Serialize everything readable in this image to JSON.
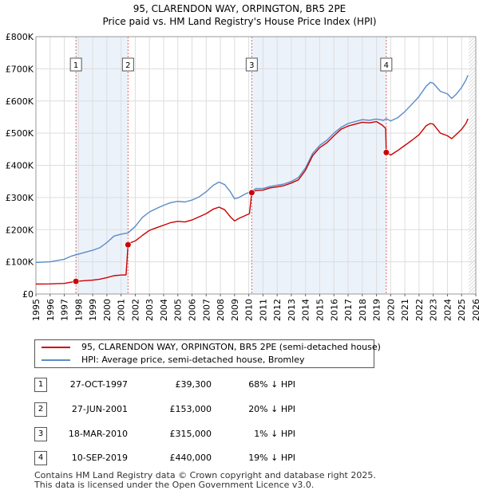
{
  "chart_data": {
    "type": "line",
    "title": "95, CLARENDON WAY, ORPINGTON, BR5 2PE",
    "subtitle": "Price paid vs. HM Land Registry's House Price Index (HPI)",
    "xlim": [
      1995,
      2026
    ],
    "ylim": [
      0,
      800000
    ],
    "y_ticks": [
      {
        "value": 0,
        "label": "£0"
      },
      {
        "value": 100000,
        "label": "£100K"
      },
      {
        "value": 200000,
        "label": "£200K"
      },
      {
        "value": 300000,
        "label": "£300K"
      },
      {
        "value": 400000,
        "label": "£400K"
      },
      {
        "value": 500000,
        "label": "£500K"
      },
      {
        "value": 600000,
        "label": "£600K"
      },
      {
        "value": 700000,
        "label": "£700K"
      },
      {
        "value": 800000,
        "label": "£800K"
      }
    ],
    "x_ticks": [
      "1995",
      "1996",
      "1997",
      "1998",
      "1999",
      "2000",
      "2001",
      "2002",
      "2003",
      "2004",
      "2005",
      "2006",
      "2007",
      "2008",
      "2009",
      "2010",
      "2011",
      "2012",
      "2013",
      "2014",
      "2015",
      "2016",
      "2017",
      "2018",
      "2019",
      "2020",
      "2021",
      "2022",
      "2023",
      "2024",
      "2025",
      "2026"
    ],
    "grid": true,
    "future_shading_from": 2025.5,
    "series": [
      {
        "name": "95, CLARENDON WAY, ORPINGTON, BR5 2PE (semi-detached house)",
        "color": "#cc0000",
        "points": [
          [
            1995.0,
            31000
          ],
          [
            1996.0,
            31500
          ],
          [
            1997.0,
            33000
          ],
          [
            1997.82,
            39300
          ],
          [
            1998.5,
            41500
          ],
          [
            1999.0,
            43000
          ],
          [
            1999.5,
            46000
          ],
          [
            2000.0,
            51000
          ],
          [
            2000.5,
            57000
          ],
          [
            2001.0,
            59000
          ],
          [
            2001.35,
            59500
          ],
          [
            2001.49,
            153000
          ],
          [
            2001.7,
            160000
          ],
          [
            2002.0,
            165000
          ],
          [
            2002.5,
            182000
          ],
          [
            2003.0,
            198000
          ],
          [
            2003.5,
            206000
          ],
          [
            2004.0,
            214000
          ],
          [
            2004.5,
            222000
          ],
          [
            2005.0,
            226000
          ],
          [
            2005.5,
            224000
          ],
          [
            2006.0,
            230000
          ],
          [
            2006.5,
            240000
          ],
          [
            2007.0,
            250000
          ],
          [
            2007.5,
            264000
          ],
          [
            2007.9,
            270000
          ],
          [
            2008.3,
            262000
          ],
          [
            2008.7,
            240000
          ],
          [
            2009.0,
            227000
          ],
          [
            2009.3,
            235000
          ],
          [
            2009.8,
            245000
          ],
          [
            2010.05,
            250000
          ],
          [
            2010.21,
            315000
          ],
          [
            2010.5,
            322000
          ],
          [
            2011.0,
            323000
          ],
          [
            2011.5,
            330000
          ],
          [
            2012.0,
            333000
          ],
          [
            2012.5,
            337000
          ],
          [
            2013.0,
            345000
          ],
          [
            2013.5,
            355000
          ],
          [
            2014.0,
            385000
          ],
          [
            2014.5,
            430000
          ],
          [
            2015.0,
            455000
          ],
          [
            2015.5,
            470000
          ],
          [
            2016.0,
            492000
          ],
          [
            2016.5,
            512000
          ],
          [
            2017.0,
            522000
          ],
          [
            2017.5,
            528000
          ],
          [
            2018.0,
            534000
          ],
          [
            2018.5,
            532000
          ],
          [
            2019.0,
            536000
          ],
          [
            2019.4,
            525000
          ],
          [
            2019.65,
            515000
          ],
          [
            2019.69,
            440000
          ],
          [
            2020.0,
            432000
          ],
          [
            2020.5,
            446000
          ],
          [
            2021.0,
            462000
          ],
          [
            2021.5,
            478000
          ],
          [
            2022.0,
            495000
          ],
          [
            2022.5,
            523000
          ],
          [
            2022.8,
            530000
          ],
          [
            2023.0,
            528000
          ],
          [
            2023.5,
            500000
          ],
          [
            2024.0,
            492000
          ],
          [
            2024.3,
            483000
          ],
          [
            2024.6,
            495000
          ],
          [
            2025.0,
            512000
          ],
          [
            2025.3,
            530000
          ],
          [
            2025.45,
            545000
          ]
        ]
      },
      {
        "name": "HPI: Average price, semi-detached house, Bromley",
        "color": "#5a8cc8",
        "points": [
          [
            1995.0,
            98000
          ],
          [
            1996.0,
            100000
          ],
          [
            1997.0,
            108000
          ],
          [
            1997.5,
            118000
          ],
          [
            1998.0,
            124000
          ],
          [
            1999.0,
            136000
          ],
          [
            1999.5,
            144000
          ],
          [
            2000.0,
            160000
          ],
          [
            2000.5,
            180000
          ],
          [
            2001.0,
            186000
          ],
          [
            2001.49,
            190000
          ],
          [
            2002.0,
            210000
          ],
          [
            2002.5,
            238000
          ],
          [
            2003.0,
            255000
          ],
          [
            2003.5,
            266000
          ],
          [
            2004.0,
            276000
          ],
          [
            2004.5,
            284000
          ],
          [
            2005.0,
            288000
          ],
          [
            2005.5,
            286000
          ],
          [
            2006.0,
            292000
          ],
          [
            2006.5,
            302000
          ],
          [
            2007.0,
            318000
          ],
          [
            2007.5,
            338000
          ],
          [
            2007.9,
            348000
          ],
          [
            2008.3,
            340000
          ],
          [
            2008.7,
            318000
          ],
          [
            2009.0,
            296000
          ],
          [
            2009.3,
            300000
          ],
          [
            2009.8,
            312000
          ],
          [
            2010.21,
            319000
          ],
          [
            2010.5,
            328000
          ],
          [
            2011.0,
            328000
          ],
          [
            2011.5,
            334000
          ],
          [
            2012.0,
            338000
          ],
          [
            2012.5,
            342000
          ],
          [
            2013.0,
            350000
          ],
          [
            2013.5,
            362000
          ],
          [
            2014.0,
            392000
          ],
          [
            2014.5,
            437000
          ],
          [
            2015.0,
            462000
          ],
          [
            2015.5,
            478000
          ],
          [
            2016.0,
            500000
          ],
          [
            2016.5,
            518000
          ],
          [
            2017.0,
            530000
          ],
          [
            2017.5,
            536000
          ],
          [
            2018.0,
            542000
          ],
          [
            2018.5,
            540000
          ],
          [
            2019.0,
            544000
          ],
          [
            2019.5,
            540000
          ],
          [
            2019.69,
            545000
          ],
          [
            2020.0,
            538000
          ],
          [
            2020.5,
            548000
          ],
          [
            2021.0,
            567000
          ],
          [
            2021.5,
            590000
          ],
          [
            2022.0,
            614000
          ],
          [
            2022.5,
            646000
          ],
          [
            2022.8,
            658000
          ],
          [
            2023.0,
            655000
          ],
          [
            2023.5,
            630000
          ],
          [
            2024.0,
            622000
          ],
          [
            2024.3,
            608000
          ],
          [
            2024.6,
            620000
          ],
          [
            2025.0,
            642000
          ],
          [
            2025.3,
            665000
          ],
          [
            2025.45,
            680000
          ]
        ]
      }
    ],
    "sales": [
      {
        "num": "1",
        "year": 1997.82,
        "price": 39300,
        "date": "27-OCT-1997",
        "price_label": "£39,300",
        "hpi": "68% ↓ HPI"
      },
      {
        "num": "2",
        "year": 2001.49,
        "price": 153000,
        "date": "27-JUN-2001",
        "price_label": "£153,000",
        "hpi": "20% ↓ HPI"
      },
      {
        "num": "3",
        "year": 2010.21,
        "price": 315000,
        "date": "18-MAR-2010",
        "price_label": "£315,000",
        "hpi": "1% ↓ HPI"
      },
      {
        "num": "4",
        "year": 2019.69,
        "price": 440000,
        "date": "10-SEP-2019",
        "price_label": "£440,000",
        "hpi": "19% ↓ HPI"
      }
    ]
  },
  "legend": {
    "property": "95, CLARENDON WAY, ORPINGTON, BR5 2PE (semi-detached house)",
    "hpi": "HPI: Average price, semi-detached house, Bromley"
  },
  "colors": {
    "property": "#cc0000",
    "hpi": "#5a8cc8",
    "highlight": "#dce8f5"
  },
  "footer": {
    "line1": "Contains HM Land Registry data © Crown copyright and database right 2025.",
    "line2": "This data is licensed under the Open Government Licence v3.0."
  }
}
